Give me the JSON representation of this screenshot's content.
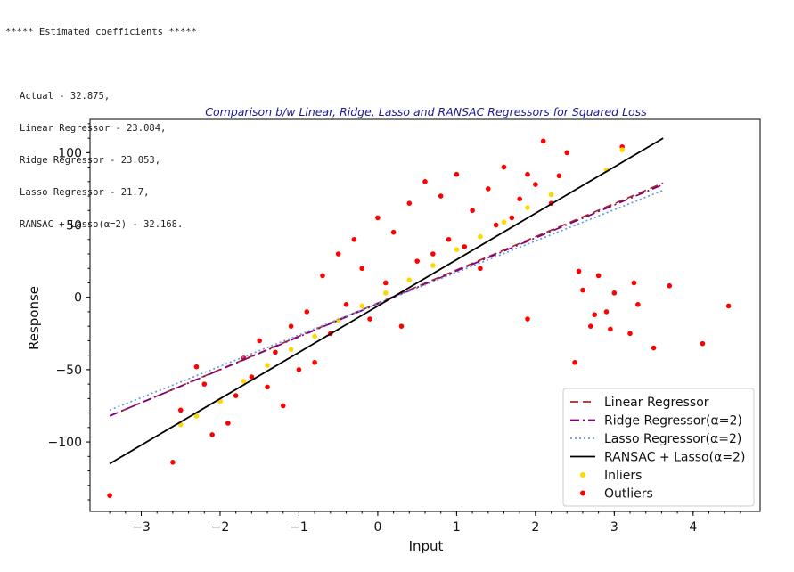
{
  "output": {
    "header": "***** Estimated coefficients *****",
    "lines": [
      "Actual - 32.875,",
      "Linear Regressor - 23.084,",
      "Ridge Regressor - 23.053,",
      "Lasso Regressor - 21.7,",
      "RANSAC + Lasso(α=2) - 32.168."
    ]
  },
  "chart_data": {
    "type": "scatter",
    "title": "Comparison b/w Linear, Ridge, Lasso and RANSAC Regressors for Squared Loss",
    "xlabel": "Input",
    "ylabel": "Response",
    "xlim": [
      -3.65,
      4.85
    ],
    "ylim": [
      -148,
      123
    ],
    "xticks": [
      -3,
      -2,
      -1,
      0,
      1,
      2,
      3,
      4
    ],
    "xtick_labels": [
      "−3",
      "−2",
      "−1",
      "0",
      "1",
      "2",
      "3",
      "4"
    ],
    "yticks": [
      -100,
      -50,
      0,
      50,
      100
    ],
    "ytick_labels": [
      "−100",
      "−50",
      "0",
      "50",
      "100"
    ],
    "legend_position": "lower-right",
    "colors": {
      "linear": "#8b1a1a",
      "ridge": "#800080",
      "lasso": "#6699dd",
      "ransac": "#000000",
      "inliers": "#ffd700",
      "outliers": "#ff0000"
    },
    "lines": [
      {
        "name": "Linear Regressor",
        "style": "dashed",
        "color": "#a52a2a",
        "x": [
          -3.4,
          3.62
        ],
        "y": [
          -82,
          79
        ]
      },
      {
        "name": "Ridge Regressor(α=2)",
        "style": "dashdot",
        "color": "#800080",
        "x": [
          -3.4,
          3.62
        ],
        "y": [
          -82,
          78
        ]
      },
      {
        "name": "Lasso Regressor(α=2)",
        "style": "dotted",
        "color": "#6699dd",
        "x": [
          -3.4,
          3.62
        ],
        "y": [
          -78,
          74
        ]
      },
      {
        "name": "RANSAC + Lasso(α=2)",
        "style": "solid",
        "color": "#000000",
        "x": [
          -3.4,
          3.62
        ],
        "y": [
          -115,
          110
        ]
      }
    ],
    "scatter_series": [
      {
        "name": "Inliers",
        "color": "#ffd700"
      },
      {
        "name": "Outliers",
        "color": "#ff0000"
      }
    ],
    "outlier_points": [
      [
        -3.4,
        -137
      ],
      [
        -2.6,
        -114
      ],
      [
        -2.5,
        -78
      ],
      [
        -2.3,
        -48
      ],
      [
        -2.2,
        -60
      ],
      [
        -2.1,
        -95
      ],
      [
        -2.0,
        -72
      ],
      [
        -1.9,
        -87
      ],
      [
        -1.8,
        -68
      ],
      [
        -1.7,
        -42
      ],
      [
        -1.6,
        -55
      ],
      [
        -1.5,
        -30
      ],
      [
        -1.4,
        -62
      ],
      [
        -1.3,
        -38
      ],
      [
        -1.2,
        -75
      ],
      [
        -1.1,
        -20
      ],
      [
        -1.0,
        -50
      ],
      [
        -0.9,
        -10
      ],
      [
        -0.8,
        -45
      ],
      [
        -0.7,
        15
      ],
      [
        -0.6,
        -25
      ],
      [
        -0.5,
        30
      ],
      [
        -0.4,
        -5
      ],
      [
        -0.3,
        40
      ],
      [
        -0.2,
        20
      ],
      [
        -0.1,
        -15
      ],
      [
        0.0,
        55
      ],
      [
        0.1,
        10
      ],
      [
        0.2,
        45
      ],
      [
        0.3,
        -20
      ],
      [
        0.4,
        65
      ],
      [
        0.5,
        25
      ],
      [
        0.6,
        80
      ],
      [
        0.7,
        30
      ],
      [
        0.8,
        70
      ],
      [
        0.9,
        40
      ],
      [
        1.0,
        85
      ],
      [
        1.1,
        35
      ],
      [
        1.2,
        60
      ],
      [
        1.3,
        20
      ],
      [
        1.4,
        75
      ],
      [
        1.5,
        50
      ],
      [
        1.6,
        90
      ],
      [
        1.7,
        55
      ],
      [
        1.8,
        68
      ],
      [
        1.9,
        85
      ],
      [
        2.0,
        78
      ],
      [
        2.1,
        108
      ],
      [
        2.2,
        65
      ],
      [
        2.4,
        100
      ],
      [
        2.5,
        -45
      ],
      [
        2.6,
        5
      ],
      [
        2.7,
        -20
      ],
      [
        2.8,
        15
      ],
      [
        2.9,
        -10
      ],
      [
        3.0,
        3
      ],
      [
        3.1,
        104
      ],
      [
        3.2,
        -25
      ],
      [
        3.3,
        -5
      ],
      [
        3.5,
        -35
      ],
      [
        3.7,
        8
      ],
      [
        4.12,
        -32
      ],
      [
        4.45,
        -6
      ],
      [
        1.9,
        -15
      ],
      [
        2.3,
        84
      ],
      [
        2.55,
        18
      ],
      [
        2.75,
        -12
      ],
      [
        2.95,
        -22
      ],
      [
        3.25,
        10
      ]
    ],
    "inlier_points": [
      [
        -2.5,
        -88
      ],
      [
        -2.3,
        -82
      ],
      [
        -2.0,
        -72
      ],
      [
        -1.7,
        -58
      ],
      [
        -1.4,
        -47
      ],
      [
        -1.1,
        -36
      ],
      [
        -0.8,
        -27
      ],
      [
        -0.5,
        -16
      ],
      [
        -0.2,
        -6
      ],
      [
        0.1,
        3
      ],
      [
        0.4,
        12
      ],
      [
        0.7,
        22
      ],
      [
        1.0,
        33
      ],
      [
        1.3,
        42
      ],
      [
        1.6,
        52
      ],
      [
        1.9,
        62
      ],
      [
        2.2,
        71
      ],
      [
        2.9,
        88
      ],
      [
        3.1,
        102
      ]
    ]
  }
}
